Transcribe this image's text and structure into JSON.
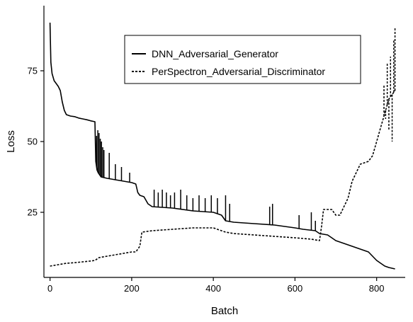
{
  "chart_data": {
    "type": "line",
    "title": "",
    "xlabel": "Batch",
    "ylabel": "Loss",
    "xlim": [
      -15,
      870
    ],
    "ylim": [
      2,
      98
    ],
    "x_ticks": [
      0,
      200,
      400,
      600,
      800
    ],
    "y_ticks": [
      25,
      50,
      75
    ],
    "grid": false,
    "legend_position": "top-right",
    "series": [
      {
        "name": "DNN_Adversarial_Generator",
        "line_style": "solid",
        "color": "#000000",
        "points": [
          [
            0,
            92
          ],
          [
            2,
            78
          ],
          [
            5,
            74
          ],
          [
            10,
            71.5
          ],
          [
            15,
            70.5
          ],
          [
            20,
            69.5
          ],
          [
            25,
            68
          ],
          [
            30,
            64
          ],
          [
            35,
            61
          ],
          [
            40,
            59.5
          ],
          [
            50,
            59
          ],
          [
            60,
            58.8
          ],
          [
            70,
            58.3
          ],
          [
            80,
            58
          ],
          [
            90,
            57.7
          ],
          [
            100,
            57.3
          ],
          [
            110,
            57
          ],
          [
            112,
            43
          ],
          [
            115,
            40
          ],
          [
            118,
            39
          ],
          [
            125,
            37.5
          ],
          [
            140,
            37
          ],
          [
            160,
            36.5
          ],
          [
            180,
            36
          ],
          [
            200,
            35.5
          ],
          [
            210,
            35
          ],
          [
            215,
            32
          ],
          [
            220,
            31
          ],
          [
            230,
            30.5
          ],
          [
            240,
            28
          ],
          [
            250,
            27
          ],
          [
            300,
            26.5
          ],
          [
            350,
            25.5
          ],
          [
            400,
            25
          ],
          [
            420,
            24
          ],
          [
            430,
            22
          ],
          [
            450,
            21.5
          ],
          [
            500,
            21
          ],
          [
            550,
            20.5
          ],
          [
            600,
            19.5
          ],
          [
            620,
            19
          ],
          [
            650,
            18.5
          ],
          [
            660,
            17.5
          ],
          [
            680,
            17
          ],
          [
            690,
            16
          ],
          [
            700,
            15
          ],
          [
            720,
            14
          ],
          [
            740,
            13
          ],
          [
            760,
            12
          ],
          [
            780,
            11
          ],
          [
            800,
            8
          ],
          [
            810,
            7
          ],
          [
            820,
            6
          ],
          [
            830,
            5.5
          ],
          [
            845,
            5
          ]
        ],
        "spikes": [
          [
            114,
            52
          ],
          [
            117,
            54
          ],
          [
            120,
            53
          ],
          [
            123,
            51
          ],
          [
            126,
            50
          ],
          [
            129,
            48
          ],
          [
            132,
            47
          ],
          [
            145,
            46
          ],
          [
            160,
            42
          ],
          [
            175,
            41
          ],
          [
            195,
            39
          ],
          [
            255,
            33
          ],
          [
            265,
            32
          ],
          [
            275,
            33
          ],
          [
            285,
            32
          ],
          [
            295,
            31
          ],
          [
            305,
            32
          ],
          [
            320,
            33
          ],
          [
            335,
            31
          ],
          [
            350,
            30
          ],
          [
            365,
            31
          ],
          [
            380,
            30
          ],
          [
            395,
            31
          ],
          [
            410,
            30
          ],
          [
            430,
            31
          ],
          [
            440,
            28
          ],
          [
            538,
            27
          ],
          [
            545,
            28
          ],
          [
            610,
            24
          ],
          [
            640,
            25
          ],
          [
            650,
            22
          ]
        ]
      },
      {
        "name": "PerSpectron_Adversarial_Discriminator",
        "line_style": "dashed",
        "color": "#000000",
        "points": [
          [
            0,
            6
          ],
          [
            20,
            6.5
          ],
          [
            40,
            7
          ],
          [
            60,
            7.2
          ],
          [
            80,
            7.5
          ],
          [
            100,
            7.8
          ],
          [
            110,
            8
          ],
          [
            120,
            9
          ],
          [
            140,
            9.5
          ],
          [
            160,
            10
          ],
          [
            180,
            10.5
          ],
          [
            200,
            11
          ],
          [
            210,
            11
          ],
          [
            220,
            13
          ],
          [
            225,
            18
          ],
          [
            250,
            18.5
          ],
          [
            300,
            19
          ],
          [
            350,
            19.5
          ],
          [
            400,
            19.5
          ],
          [
            430,
            18
          ],
          [
            450,
            17.5
          ],
          [
            500,
            17
          ],
          [
            550,
            16.5
          ],
          [
            600,
            16
          ],
          [
            640,
            15.5
          ],
          [
            660,
            15
          ],
          [
            665,
            20
          ],
          [
            670,
            26
          ],
          [
            690,
            26
          ],
          [
            700,
            24
          ],
          [
            710,
            24
          ],
          [
            730,
            30
          ],
          [
            740,
            36
          ],
          [
            760,
            42
          ],
          [
            780,
            43
          ],
          [
            790,
            45
          ],
          [
            800,
            50
          ],
          [
            810,
            55
          ],
          [
            820,
            60
          ],
          [
            830,
            65
          ],
          [
            845,
            68
          ]
        ],
        "spikes": [
          [
            818,
            70
          ],
          [
            822,
            58
          ],
          [
            826,
            78
          ],
          [
            830,
            54
          ],
          [
            834,
            80
          ],
          [
            838,
            50
          ],
          [
            842,
            86
          ],
          [
            845,
            90
          ]
        ]
      }
    ]
  }
}
